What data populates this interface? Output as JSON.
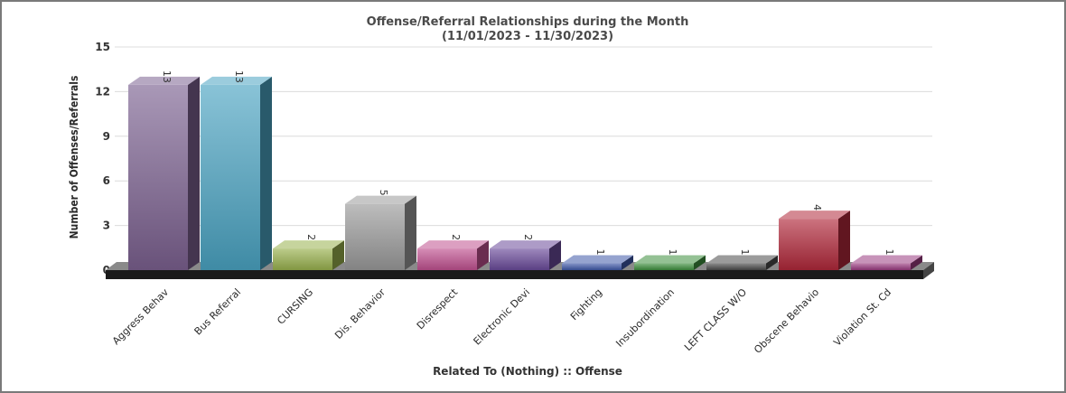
{
  "chart_data": {
    "type": "bar",
    "title": "Offense/Referral Relationships during the Month",
    "subtitle": "(11/01/2023 - 11/30/2023)",
    "xlabel": "Related To (Nothing) :: Offense",
    "ylabel": "Number of Offenses/Referrals",
    "ylim": [
      0,
      15
    ],
    "yticks": [
      0,
      3,
      6,
      9,
      12,
      15
    ],
    "grid": true,
    "categories": [
      "Aggress Behav",
      "Bus Referral",
      "CURSING",
      "Dis. Behavior",
      "Disrespect",
      "Electronic Devi",
      "Fighting",
      "Insubordination",
      "LEFT CLASS W/O",
      "Obscene Behavio",
      "Violation St. Cd"
    ],
    "values": [
      13,
      13,
      2,
      5,
      2,
      2,
      1,
      1,
      1,
      4,
      1
    ],
    "value_labels": [
      "13",
      "13",
      "2",
      "5",
      "2",
      "2",
      "1",
      "1",
      "1",
      "4",
      "1"
    ],
    "colors": [
      "#7b6090",
      "#4aa3c2",
      "#98b04c",
      "#9a9a9a",
      "#c0508f",
      "#6a4a9a",
      "#3e58a8",
      "#3d8f3d",
      "#4a4a4a",
      "#b0283a",
      "#9a3a80"
    ]
  }
}
